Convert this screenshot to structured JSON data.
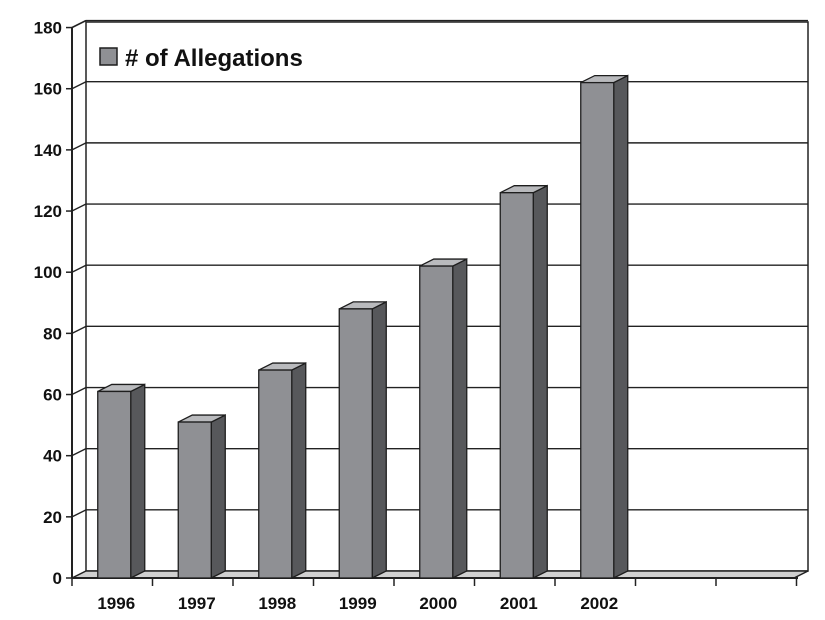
{
  "chart_data": {
    "type": "bar",
    "categories": [
      "1996",
      "1997",
      "1998",
      "1999",
      "2000",
      "2001",
      "2002"
    ],
    "series": [
      {
        "name": "# of Allegations",
        "values": [
          61,
          51,
          68,
          88,
          102,
          126,
          162
        ]
      }
    ],
    "y_ticks": [
      "0",
      "20",
      "40",
      "60",
      "80",
      "100",
      "120",
      "140",
      "160",
      "180"
    ],
    "ylim": [
      0,
      180
    ],
    "grid": true,
    "legend_position": "top-left",
    "colors": {
      "bar_front": "#8f9094",
      "bar_top": "#b9babd",
      "bar_side": "#57585b",
      "bar_edge": "#1e1e1e"
    }
  }
}
